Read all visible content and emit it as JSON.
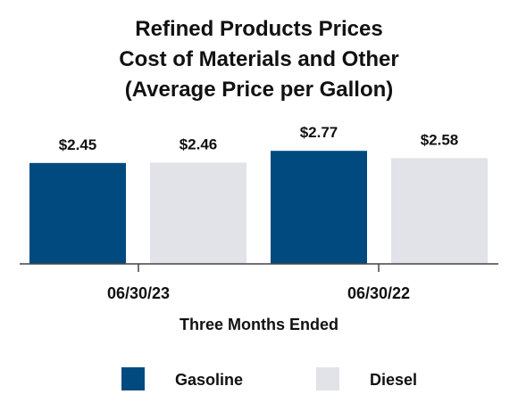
{
  "chart_data": {
    "type": "bar",
    "title_lines": [
      "Refined Products Prices",
      "Cost of Materials and Other",
      "(Average Price per Gallon)"
    ],
    "categories": [
      "06/30/23",
      "06/30/22"
    ],
    "series": [
      {
        "name": "Gasoline",
        "values": [
          2.45,
          2.77
        ],
        "labels": [
          "$2.45",
          "$2.77"
        ],
        "color": "#004a7f"
      },
      {
        "name": "Diesel",
        "values": [
          2.46,
          2.58
        ],
        "labels": [
          "$2.46",
          "$2.58"
        ],
        "color": "#e1e3e8"
      }
    ],
    "xlabel": "Three Months Ended",
    "ylabel": "",
    "ylim": [
      0,
      3.1
    ],
    "grid": false,
    "legend_position": "bottom"
  }
}
